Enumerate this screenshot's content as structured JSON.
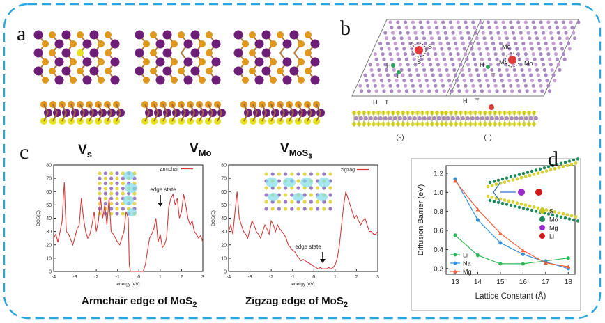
{
  "panels": {
    "a": {
      "letter": "a",
      "labels": [
        {
          "main": "V",
          "sub": "s"
        },
        {
          "main": "V",
          "sub": "Mo"
        },
        {
          "main": "V",
          "sub": "MoS",
          "sub2": "3"
        }
      ]
    },
    "b": {
      "letter": "b",
      "left_sites": [
        "S",
        "S",
        "S",
        "H",
        "T",
        "H",
        "T"
      ],
      "right_sites": [
        "Mo",
        "Mo",
        "Mo",
        "H",
        "T",
        "H",
        "T"
      ],
      "subcaptions": [
        "(a)",
        "(b)"
      ]
    },
    "c": {
      "letter": "c",
      "captions": [
        {
          "text": "Armchair  edge of MoS",
          "sub": "2"
        },
        {
          "text": "Zigzag edge of MoS",
          "sub": "2"
        }
      ]
    },
    "d": {
      "letter": "d",
      "legend_atoms": [
        {
          "name": "S",
          "color": "#c8c820"
        },
        {
          "name": "Mo",
          "color": "#1a8a5a"
        },
        {
          "name": "Mg",
          "color": "#9b2bd0"
        },
        {
          "name": "Li",
          "color": "#d01818"
        }
      ]
    }
  },
  "chart_data": [
    {
      "type": "line",
      "title": "",
      "legend": [
        "armchair"
      ],
      "xlabel": "energy [eV]",
      "ylabel": "DOS(E)",
      "xlim": [
        -4,
        3
      ],
      "ylim": [
        0,
        80
      ],
      "xticks": [
        -4,
        -3,
        -2,
        -1,
        0,
        1,
        2,
        3
      ],
      "yticks": [
        0,
        10,
        20,
        30,
        40,
        50,
        60,
        70,
        80
      ],
      "annotation": "edge state",
      "series": [
        {
          "name": "armchair",
          "color": "#d23b3b",
          "x": [
            -4.0,
            -3.9,
            -3.8,
            -3.7,
            -3.6,
            -3.55,
            -3.5,
            -3.45,
            -3.4,
            -3.3,
            -3.2,
            -3.1,
            -3.0,
            -2.9,
            -2.8,
            -2.7,
            -2.6,
            -2.5,
            -2.4,
            -2.3,
            -2.2,
            -2.1,
            -2.0,
            -1.9,
            -1.8,
            -1.7,
            -1.6,
            -1.5,
            -1.4,
            -1.3,
            -1.2,
            -1.1,
            -1.0,
            -0.9,
            -0.8,
            -0.7,
            -0.6,
            -0.5,
            -0.45,
            -0.4,
            -0.3,
            -0.2,
            -0.1,
            0.0,
            0.1,
            0.2,
            0.3,
            0.4,
            0.5,
            0.6,
            0.7,
            0.8,
            0.9,
            1.0,
            1.1,
            1.2,
            1.3,
            1.4,
            1.5,
            1.6,
            1.7,
            1.8,
            1.9,
            2.0,
            2.1,
            2.2,
            2.3,
            2.4,
            2.5,
            2.6,
            2.7,
            2.8,
            2.9,
            3.0
          ],
          "y": [
            25,
            28,
            22,
            30,
            38,
            55,
            67,
            45,
            30,
            28,
            24,
            20,
            26,
            32,
            35,
            55,
            40,
            30,
            25,
            28,
            35,
            45,
            30,
            38,
            55,
            40,
            50,
            35,
            55,
            30,
            28,
            25,
            22,
            20,
            25,
            30,
            45,
            40,
            5,
            0,
            0,
            0,
            0,
            0,
            0,
            0,
            5,
            15,
            25,
            28,
            32,
            40,
            22,
            28,
            18,
            20,
            25,
            48,
            55,
            58,
            50,
            55,
            40,
            45,
            58,
            50,
            40,
            35,
            38,
            30,
            28,
            25,
            27,
            22
          ]
        }
      ]
    },
    {
      "type": "line",
      "title": "",
      "legend": [
        "zigzag"
      ],
      "xlabel": "energy [eV]",
      "ylabel": "DOS(E)",
      "xlim": [
        -4,
        3
      ],
      "ylim": [
        0,
        80
      ],
      "xticks": [
        -4,
        -3,
        -2,
        -1,
        0,
        1,
        2,
        3
      ],
      "yticks": [
        0,
        10,
        20,
        30,
        40,
        50,
        60,
        70,
        80
      ],
      "annotation": "edge state",
      "series": [
        {
          "name": "zigzag",
          "color": "#d23b3b",
          "x": [
            -4.0,
            -3.9,
            -3.8,
            -3.7,
            -3.6,
            -3.5,
            -3.4,
            -3.3,
            -3.2,
            -3.1,
            -3.0,
            -2.9,
            -2.8,
            -2.7,
            -2.6,
            -2.5,
            -2.4,
            -2.3,
            -2.2,
            -2.1,
            -2.0,
            -1.9,
            -1.8,
            -1.7,
            -1.6,
            -1.5,
            -1.4,
            -1.3,
            -1.2,
            -1.1,
            -1.0,
            -0.9,
            -0.8,
            -0.7,
            -0.6,
            -0.5,
            -0.4,
            -0.3,
            -0.2,
            -0.1,
            0.0,
            0.1,
            0.2,
            0.3,
            0.4,
            0.5,
            0.6,
            0.7,
            0.8,
            0.9,
            1.0,
            1.1,
            1.2,
            1.3,
            1.4,
            1.5,
            1.6,
            1.7,
            1.8,
            1.9,
            2.0,
            2.1,
            2.2,
            2.3,
            2.4,
            2.5,
            2.6,
            2.7,
            2.8,
            2.9,
            3.0
          ],
          "y": [
            30,
            35,
            28,
            45,
            60,
            40,
            35,
            30,
            28,
            25,
            32,
            38,
            35,
            30,
            28,
            25,
            30,
            35,
            32,
            28,
            38,
            35,
            30,
            35,
            32,
            30,
            28,
            25,
            20,
            18,
            16,
            15,
            12,
            10,
            8,
            9,
            8,
            7,
            6,
            5,
            4,
            3,
            2,
            3,
            2,
            2,
            2,
            3,
            2,
            3,
            5,
            10,
            20,
            35,
            50,
            60,
            55,
            50,
            45,
            40,
            42,
            38,
            35,
            38,
            40,
            35,
            30,
            30,
            28,
            28,
            30
          ]
        }
      ]
    },
    {
      "type": "line",
      "title": "",
      "xlabel": "Lattice Constant (Å)",
      "ylabel": "Diffusion Barrier (eV)",
      "xlim": [
        12.6,
        18.3
      ],
      "ylim": [
        0.14,
        1.28
      ],
      "xticks": [
        13,
        14,
        15,
        16,
        17,
        18
      ],
      "yticks": [
        0.2,
        0.4,
        0.6,
        0.8,
        1.0,
        1.2
      ],
      "x": [
        13,
        14,
        15,
        16,
        17,
        18
      ],
      "series": [
        {
          "name": "Li",
          "color": "#2fb85a",
          "values": [
            0.55,
            0.34,
            0.25,
            0.25,
            0.28,
            0.31
          ]
        },
        {
          "name": "Na",
          "color": "#2f8fd8",
          "values": [
            1.14,
            0.71,
            0.47,
            0.35,
            0.27,
            0.2
          ]
        },
        {
          "name": "Mg",
          "color": "#f0603a",
          "values": [
            1.12,
            0.82,
            0.57,
            0.39,
            0.26,
            0.22
          ]
        }
      ]
    }
  ]
}
